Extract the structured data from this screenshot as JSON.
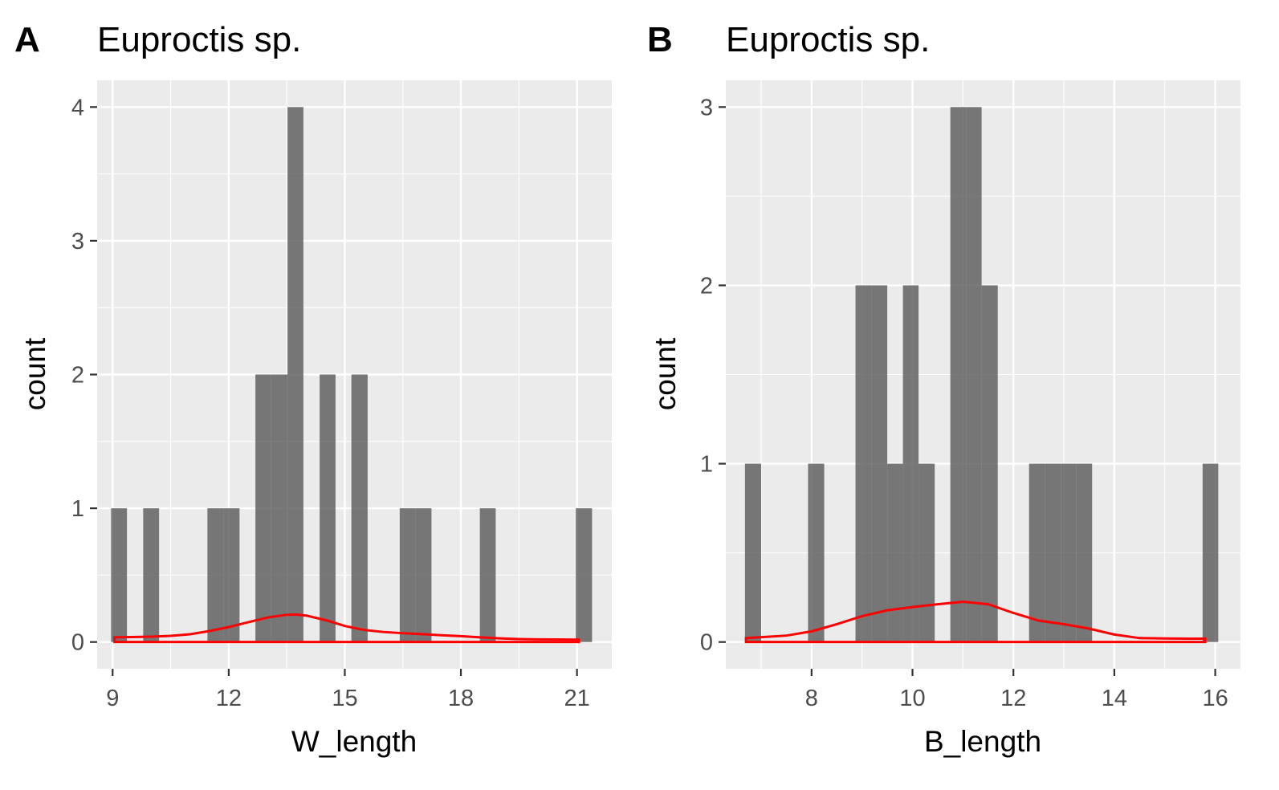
{
  "chart_data": [
    {
      "type": "histogram",
      "tag": "A",
      "title": "Euproctis sp.",
      "xlabel": "W_length",
      "ylabel": "count",
      "xlim": [
        8.6,
        21.9
      ],
      "ylim": [
        -0.2,
        4.2
      ],
      "x_ticks": [
        9,
        12,
        15,
        18,
        21
      ],
      "y_ticks": [
        0,
        1,
        2,
        3,
        4
      ],
      "grid": true,
      "bin_width": 0.414,
      "bins": [
        {
          "x0": 8.96,
          "x1": 9.37,
          "count": 1
        },
        {
          "x0": 9.79,
          "x1": 10.2,
          "count": 1
        },
        {
          "x0": 11.45,
          "x1": 11.86,
          "count": 1
        },
        {
          "x0": 11.86,
          "x1": 12.28,
          "count": 1
        },
        {
          "x0": 12.69,
          "x1": 13.1,
          "count": 2
        },
        {
          "x0": 13.1,
          "x1": 13.52,
          "count": 2
        },
        {
          "x0": 13.52,
          "x1": 13.93,
          "count": 4
        },
        {
          "x0": 14.35,
          "x1": 14.76,
          "count": 2
        },
        {
          "x0": 15.17,
          "x1": 15.59,
          "count": 2
        },
        {
          "x0": 16.42,
          "x1": 16.83,
          "count": 1
        },
        {
          "x0": 16.83,
          "x1": 17.24,
          "count": 1
        },
        {
          "x0": 18.49,
          "x1": 18.9,
          "count": 1
        },
        {
          "x0": 20.97,
          "x1": 21.39,
          "count": 1
        }
      ],
      "density": {
        "color": "#ff0000",
        "x": [
          9.05,
          9.5,
          10.0,
          10.5,
          11.0,
          11.5,
          12.0,
          12.5,
          13.0,
          13.5,
          13.75,
          14.0,
          14.5,
          15.0,
          15.5,
          16.0,
          16.5,
          17.0,
          17.5,
          18.0,
          18.5,
          19.0,
          19.5,
          20.0,
          20.5,
          21.05
        ],
        "y": [
          0.035,
          0.037,
          0.04,
          0.046,
          0.058,
          0.082,
          0.112,
          0.148,
          0.183,
          0.204,
          0.205,
          0.198,
          0.164,
          0.12,
          0.09,
          0.075,
          0.066,
          0.059,
          0.051,
          0.044,
          0.035,
          0.027,
          0.022,
          0.02,
          0.019,
          0.018
        ]
      }
    },
    {
      "type": "histogram",
      "tag": "B",
      "title": "Euproctis sp.",
      "xlabel": "B_length",
      "ylabel": "count",
      "xlim": [
        6.3,
        16.5
      ],
      "ylim": [
        -0.15,
        3.15
      ],
      "x_ticks": [
        8,
        10,
        12,
        14,
        16
      ],
      "y_ticks": [
        0,
        1,
        2,
        3
      ],
      "grid": true,
      "bin_width": 0.31,
      "bins": [
        {
          "x0": 6.68,
          "x1": 7.0,
          "count": 1
        },
        {
          "x0": 7.93,
          "x1": 8.25,
          "count": 1
        },
        {
          "x0": 8.87,
          "x1": 9.19,
          "count": 2
        },
        {
          "x0": 9.19,
          "x1": 9.5,
          "count": 2
        },
        {
          "x0": 9.5,
          "x1": 9.81,
          "count": 1
        },
        {
          "x0": 9.81,
          "x1": 10.12,
          "count": 2
        },
        {
          "x0": 10.12,
          "x1": 10.44,
          "count": 1
        },
        {
          "x0": 10.75,
          "x1": 11.06,
          "count": 3
        },
        {
          "x0": 11.06,
          "x1": 11.37,
          "count": 3
        },
        {
          "x0": 11.37,
          "x1": 11.69,
          "count": 2
        },
        {
          "x0": 12.31,
          "x1": 12.62,
          "count": 1
        },
        {
          "x0": 12.62,
          "x1": 12.94,
          "count": 1
        },
        {
          "x0": 12.94,
          "x1": 13.25,
          "count": 1
        },
        {
          "x0": 13.25,
          "x1": 13.56,
          "count": 1
        },
        {
          "x0": 15.75,
          "x1": 16.06,
          "count": 1
        }
      ],
      "density": {
        "color": "#ff0000",
        "x": [
          6.7,
          7.0,
          7.5,
          8.0,
          8.5,
          9.0,
          9.5,
          10.0,
          10.5,
          11.0,
          11.5,
          12.0,
          12.5,
          13.0,
          13.5,
          14.0,
          14.5,
          15.0,
          15.5,
          15.8
        ],
        "y": [
          0.022,
          0.027,
          0.036,
          0.06,
          0.1,
          0.145,
          0.178,
          0.196,
          0.212,
          0.226,
          0.212,
          0.163,
          0.12,
          0.1,
          0.075,
          0.042,
          0.022,
          0.02,
          0.019,
          0.019
        ]
      }
    }
  ]
}
